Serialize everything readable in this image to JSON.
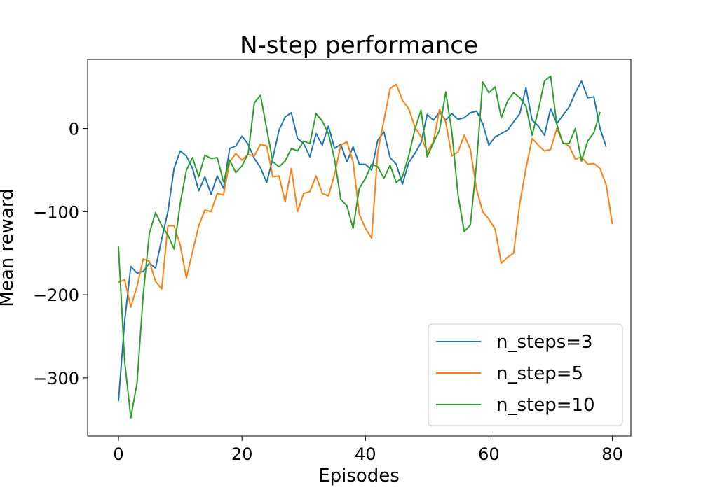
{
  "chart_data": {
    "type": "line",
    "title": "N-step performance",
    "xlabel": "Episodes",
    "ylabel": "Mean reward",
    "xlim": [
      -5,
      83
    ],
    "ylim": [
      -370,
      83
    ],
    "xticks": [
      0,
      20,
      40,
      60,
      80
    ],
    "yticks": [
      0,
      -100,
      -200,
      -300
    ],
    "xtick_labels": [
      "0",
      "20",
      "40",
      "60",
      "80"
    ],
    "ytick_labels": [
      "0",
      "−100",
      "−200",
      "−300"
    ],
    "legend_position": "lower-right",
    "grid": false,
    "series": [
      {
        "name": "n_steps=3",
        "color": "#1f77b4",
        "values": [
          -328,
          -232,
          -166,
          -174,
          -172,
          -162,
          -168,
          -133,
          -100,
          -48,
          -27,
          -33,
          -48,
          -75,
          -58,
          -79,
          -57,
          -72,
          -24,
          -21,
          -9,
          -19,
          -36,
          -47,
          -65,
          -36,
          -2,
          14,
          19,
          -12,
          -18,
          -34,
          -6,
          -20,
          3,
          -24,
          -19,
          -40,
          -22,
          -43,
          -43,
          -50,
          -14,
          -4,
          -35,
          -43,
          -67,
          -41,
          -30,
          -17,
          17,
          10,
          20,
          10,
          18,
          11,
          13,
          19,
          21,
          6,
          -20,
          -10,
          -6,
          -2,
          8,
          18,
          49,
          10,
          3,
          -8,
          24,
          6,
          16,
          26,
          43,
          57,
          37,
          38,
          0,
          -22
        ]
      },
      {
        "name": "n_step=5",
        "color": "#ff7f0e",
        "values": [
          -185,
          -182,
          -215,
          -190,
          -157,
          -160,
          -184,
          -193,
          -117,
          -117,
          -140,
          -180,
          -148,
          -117,
          -98,
          -100,
          -78,
          -80,
          -40,
          -30,
          -38,
          -31,
          -33,
          -19,
          -21,
          -58,
          -57,
          -88,
          -48,
          -100,
          -78,
          -76,
          -57,
          -78,
          -81,
          -55,
          -20,
          -16,
          -40,
          -103,
          -120,
          -132,
          -28,
          10,
          48,
          53,
          34,
          24,
          2,
          -10,
          -28,
          -16,
          23,
          8,
          -33,
          -28,
          -8,
          -25,
          -73,
          -100,
          -109,
          -121,
          -162,
          -155,
          -150,
          -90,
          -48,
          -12,
          -20,
          -27,
          -25,
          0,
          -17,
          -21,
          -37,
          -34,
          -43,
          -42,
          -48,
          -68,
          -115
        ]
      },
      {
        "name": "n_step=10",
        "color": "#2ca02c",
        "values": [
          -142,
          -280,
          -348,
          -306,
          -200,
          -126,
          -101,
          -117,
          -128,
          -145,
          -90,
          -50,
          -35,
          -58,
          -32,
          -36,
          -35,
          -64,
          -38,
          -53,
          -45,
          -30,
          31,
          40,
          0,
          -40,
          -46,
          -39,
          -24,
          -27,
          -15,
          -18,
          18,
          9,
          -6,
          -37,
          -85,
          -93,
          -120,
          -72,
          -60,
          -43,
          -46,
          -60,
          -44,
          -65,
          -58,
          -33,
          -1,
          22,
          -34,
          -17,
          -2,
          44,
          -4,
          -80,
          -124,
          -116,
          -42,
          56,
          43,
          50,
          13,
          33,
          43,
          37,
          27,
          -8,
          22,
          57,
          63,
          5,
          -18,
          -18,
          0,
          -39,
          -15,
          -5,
          20
        ]
      }
    ]
  }
}
